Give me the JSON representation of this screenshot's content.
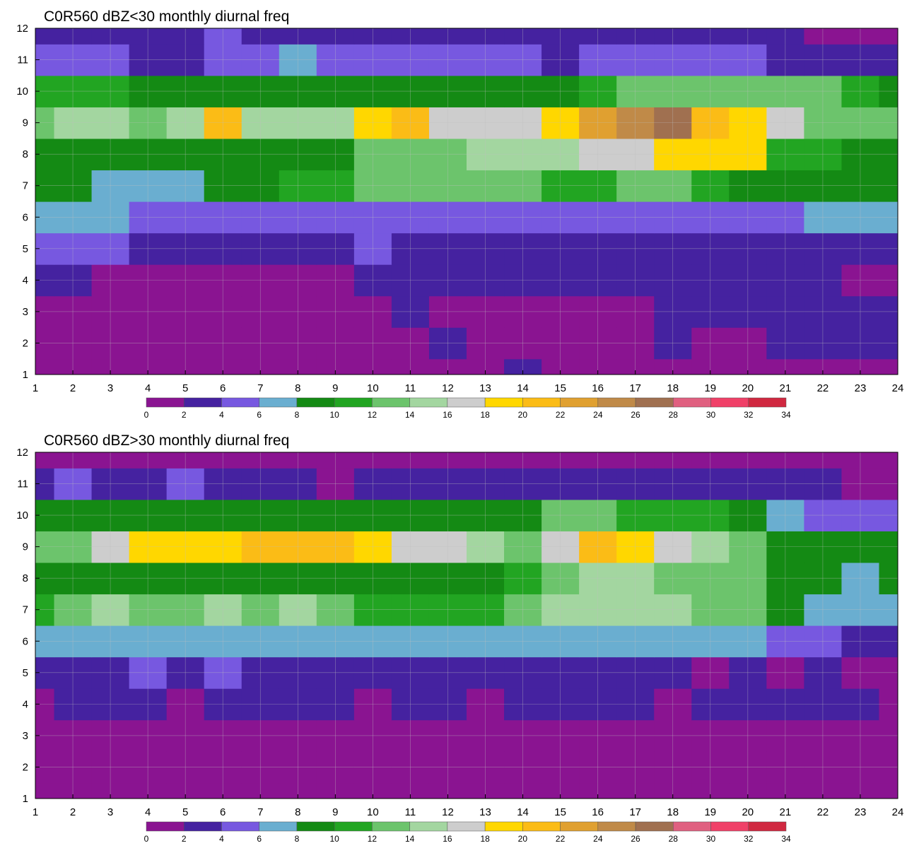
{
  "chart_data": [
    {
      "type": "heatmap",
      "title": "C0R560 dBZ<30 monthly diurnal freq",
      "x_ticks": [
        1,
        2,
        3,
        4,
        5,
        6,
        7,
        8,
        9,
        10,
        11,
        12,
        13,
        14,
        15,
        16,
        17,
        18,
        19,
        20,
        21,
        22,
        23,
        24
      ],
      "y_ticks": [
        1,
        2,
        3,
        4,
        5,
        6,
        7,
        8,
        9,
        10,
        11,
        12
      ],
      "xlim": [
        1,
        24
      ],
      "ylim": [
        1,
        12
      ],
      "colorbar_levels": [
        0,
        2,
        4,
        6,
        8,
        10,
        12,
        14,
        16,
        18,
        20,
        22,
        24,
        26,
        28,
        30,
        32,
        34
      ],
      "grid": true,
      "z_rows": [
        [
          1,
          1,
          1,
          1,
          1,
          1,
          1,
          1,
          1,
          1,
          1,
          1,
          1,
          3,
          1,
          1,
          1,
          1,
          1,
          1,
          1,
          1,
          1,
          1
        ],
        [
          1,
          1,
          1,
          1,
          1,
          1,
          1,
          1,
          1,
          1,
          1,
          2,
          1,
          1,
          1,
          1,
          1,
          3,
          1,
          1,
          3,
          3,
          3,
          3
        ],
        [
          1,
          1,
          1,
          1,
          1,
          1,
          1,
          1,
          1,
          1,
          3,
          1,
          1,
          1,
          1,
          1,
          1,
          3,
          3,
          3,
          3,
          3,
          3,
          3
        ],
        [
          3,
          3,
          1,
          1,
          1,
          1,
          1,
          1,
          1,
          3,
          3,
          3,
          3,
          3,
          3,
          3,
          3,
          3,
          3,
          3,
          3,
          3,
          1,
          1
        ],
        [
          5,
          5,
          5,
          3,
          3,
          3,
          3,
          3,
          3,
          5,
          3,
          3,
          3,
          3,
          3,
          3,
          3,
          3,
          3,
          3,
          3,
          3,
          3,
          3
        ],
        [
          7,
          7,
          7,
          5,
          5,
          5,
          5,
          5,
          5,
          5,
          5,
          5,
          5,
          5,
          5,
          5,
          5,
          5,
          5,
          5,
          5,
          7,
          7,
          7
        ],
        [
          9,
          9,
          7,
          7,
          7,
          9,
          9,
          11,
          11,
          13,
          13,
          13,
          13,
          13,
          11,
          11,
          13,
          13,
          11,
          9,
          9,
          9,
          9,
          9
        ],
        [
          9,
          9,
          9,
          9,
          9,
          9,
          9,
          9,
          9,
          13,
          13,
          13,
          15,
          15,
          15,
          17,
          17,
          19,
          19,
          19,
          11,
          11,
          9,
          9
        ],
        [
          13,
          15,
          15,
          13,
          15,
          21,
          15,
          15,
          15,
          19,
          21,
          17,
          17,
          17,
          19,
          23,
          25,
          27,
          21,
          19,
          17,
          13,
          13,
          13
        ],
        [
          11,
          11,
          11,
          9,
          9,
          9,
          9,
          9,
          9,
          9,
          9,
          9,
          9,
          9,
          9,
          11,
          13,
          13,
          13,
          13,
          13,
          13,
          11,
          9
        ],
        [
          5,
          5,
          5,
          3,
          3,
          5,
          5,
          7,
          5,
          5,
          5,
          5,
          5,
          5,
          3,
          5,
          5,
          5,
          5,
          5,
          3,
          3,
          3,
          3
        ],
        [
          3,
          3,
          3,
          3,
          3,
          5,
          3,
          3,
          3,
          3,
          3,
          3,
          3,
          3,
          3,
          3,
          3,
          3,
          3,
          3,
          3,
          1,
          1,
          1
        ]
      ]
    },
    {
      "type": "heatmap",
      "title": "C0R560 dBZ>30 monthly diurnal freq",
      "x_ticks": [
        1,
        2,
        3,
        4,
        5,
        6,
        7,
        8,
        9,
        10,
        11,
        12,
        13,
        14,
        15,
        16,
        17,
        18,
        19,
        20,
        21,
        22,
        23,
        24
      ],
      "y_ticks": [
        1,
        2,
        3,
        4,
        5,
        6,
        7,
        8,
        9,
        10,
        11,
        12
      ],
      "xlim": [
        1,
        24
      ],
      "ylim": [
        1,
        12
      ],
      "colorbar_levels": [
        0,
        2,
        4,
        6,
        8,
        10,
        12,
        14,
        16,
        18,
        20,
        22,
        24,
        26,
        28,
        30,
        32,
        34
      ],
      "grid": true,
      "z_rows": [
        [
          1,
          1,
          1,
          1,
          1,
          1,
          1,
          1,
          1,
          1,
          1,
          1,
          1,
          1,
          1,
          1,
          1,
          1,
          1,
          1,
          1,
          1,
          1,
          1
        ],
        [
          1,
          1,
          1,
          1,
          1,
          1,
          1,
          1,
          1,
          1,
          1,
          1,
          1,
          1,
          1,
          1,
          1,
          1,
          1,
          1,
          1,
          1,
          1,
          1
        ],
        [
          1,
          1,
          1,
          1,
          1,
          1,
          1,
          1,
          1,
          1,
          1,
          1,
          1,
          1,
          1,
          1,
          1,
          1,
          1,
          1,
          1,
          1,
          1,
          1
        ],
        [
          1,
          3,
          3,
          3,
          1,
          3,
          3,
          3,
          3,
          1,
          3,
          3,
          1,
          3,
          3,
          3,
          3,
          1,
          3,
          3,
          3,
          3,
          3,
          1
        ],
        [
          3,
          3,
          3,
          5,
          3,
          5,
          3,
          3,
          3,
          3,
          3,
          3,
          3,
          3,
          3,
          3,
          3,
          3,
          1,
          3,
          1,
          3,
          1,
          1
        ],
        [
          7,
          7,
          7,
          7,
          7,
          7,
          7,
          7,
          7,
          7,
          7,
          7,
          7,
          7,
          7,
          7,
          7,
          7,
          7,
          7,
          5,
          5,
          3,
          3
        ],
        [
          11,
          13,
          15,
          13,
          13,
          15,
          13,
          15,
          13,
          11,
          11,
          11,
          11,
          13,
          15,
          15,
          15,
          15,
          13,
          13,
          9,
          7,
          7,
          7
        ],
        [
          9,
          9,
          9,
          9,
          9,
          9,
          9,
          9,
          9,
          9,
          9,
          9,
          9,
          11,
          13,
          15,
          15,
          13,
          13,
          13,
          9,
          9,
          7,
          9
        ],
        [
          13,
          13,
          17,
          19,
          19,
          19,
          21,
          21,
          21,
          19,
          17,
          17,
          15,
          13,
          17,
          21,
          19,
          17,
          15,
          13,
          9,
          9,
          9,
          9
        ],
        [
          9,
          9,
          9,
          9,
          9,
          9,
          9,
          9,
          9,
          9,
          9,
          9,
          9,
          9,
          13,
          13,
          11,
          11,
          11,
          9,
          7,
          5,
          5,
          5
        ],
        [
          3,
          5,
          3,
          3,
          5,
          3,
          3,
          3,
          1,
          3,
          3,
          3,
          3,
          3,
          3,
          3,
          3,
          3,
          3,
          3,
          3,
          3,
          1,
          1
        ],
        [
          1,
          1,
          1,
          1,
          1,
          1,
          1,
          1,
          1,
          1,
          1,
          1,
          1,
          1,
          1,
          1,
          1,
          1,
          1,
          1,
          1,
          1,
          1,
          1
        ]
      ]
    }
  ],
  "colors": {
    "bins": [
      "#8a1491",
      "#4522a0",
      "#7758e0",
      "#6aaed0",
      "#148a14",
      "#22a522",
      "#6cc46c",
      "#a3d6a0",
      "#cdcdcd",
      "#ffd700",
      "#fbbc16",
      "#e0a030",
      "#c08a48",
      "#a07050",
      "#e06080",
      "#f04068",
      "#d02840"
    ],
    "contour_line": "#e8b24a",
    "axis": "#000000",
    "grid": "#bfbfbf"
  }
}
